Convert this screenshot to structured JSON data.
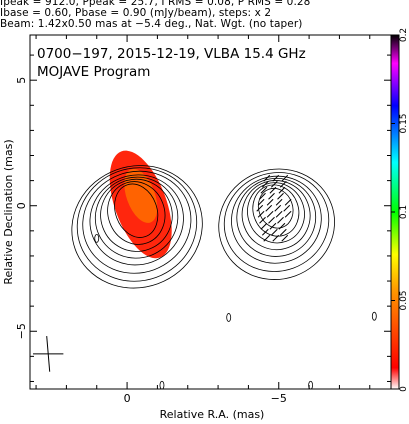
{
  "header": {
    "line1": "Ipeak = 912.0, Ppeak = 25.7, I RMS = 0.08, P RMS = 0.28",
    "line2": "Ibase = 0.60, Pbase = 0.90 (mJy/beam), steps: x 2",
    "line3": "Beam: 1.42x0.50 mas at −5.4 deg., Nat. Wgt. (no taper)"
  },
  "chart_data": {
    "type": "contour-map",
    "title": "0700−197, 2015-12-19, VLBA 15.4 GHz",
    "subtitle": "MOJAVE Program",
    "xlabel": "Relative R.A. (mas)",
    "ylabel": "Relative Declination (mas)",
    "xlim": [
      3.2,
      -8.7
    ],
    "ylim": [
      -7.3,
      6.8
    ],
    "x_ticks": [
      {
        "value": 0,
        "label": "0"
      },
      {
        "value": -5,
        "label": "−5"
      }
    ],
    "y_ticks": [
      {
        "value": 5,
        "label": "5"
      },
      {
        "value": 0,
        "label": "0"
      },
      {
        "value": -5,
        "label": "−5"
      }
    ],
    "colorbar": {
      "range": [
        0,
        0.2
      ],
      "ticks": [
        {
          "value": 0,
          "label": "0"
        },
        {
          "value": 0.05,
          "label": "0.05"
        },
        {
          "value": 0.1,
          "label": "0.1"
        },
        {
          "value": 0.15,
          "label": "0.15"
        },
        {
          "value": 0.2,
          "label": "0.2"
        }
      ],
      "colors": [
        "#ffffff",
        "#ff0000",
        "#ffaa00",
        "#ffff00",
        "#00ff00",
        "#00ffff",
        "#0000ff",
        "#ff00ff",
        "#000000"
      ]
    },
    "components": [
      {
        "name": "core",
        "x": -0.3,
        "y": -0.2,
        "rx": [
          1.1,
          1.5,
          1.9,
          2.2,
          2.5,
          2.9,
          3.2,
          3.5
        ],
        "ry": [
          0.95,
          1.1,
          1.25,
          1.4,
          1.55,
          1.75,
          1.95,
          2.1
        ],
        "shrink": [
          0.7,
          0.32,
          0.18,
          0.1,
          0.06,
          0.035,
          0.02,
          0.012
        ]
      },
      {
        "name": "jet",
        "x": -4.9,
        "y": -0.1,
        "rx": [
          0.9,
          1.2,
          1.5,
          1.8,
          2.1,
          2.4,
          2.8,
          3.1
        ],
        "ry": [
          0.7,
          0.9,
          1.05,
          1.2,
          1.35,
          1.5,
          1.7,
          1.9
        ],
        "shrink": [
          0.7,
          0.32,
          0.18,
          0.1,
          0.06,
          0.035,
          0.02,
          0.012
        ]
      }
    ],
    "pol_region": {
      "x": -0.45,
      "y": 0.05,
      "rx": 0.85,
      "ry": 2.25,
      "angle": -20
    },
    "beam": {
      "x": 2.6,
      "y": -5.9,
      "major": 1.42,
      "minor": 0.5,
      "pa": -5.4
    }
  }
}
